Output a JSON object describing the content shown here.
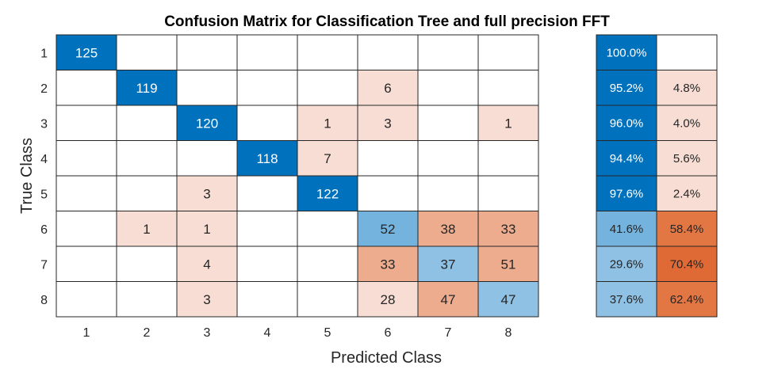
{
  "chart_data": {
    "type": "heatmap",
    "title": "Confusion  Matrix for Classification Tree and full precision FFT",
    "xlabel": "Predicted Class",
    "ylabel": "True Class",
    "classes": [
      "1",
      "2",
      "3",
      "4",
      "5",
      "6",
      "7",
      "8"
    ],
    "matrix": [
      [
        125,
        0,
        0,
        0,
        0,
        0,
        0,
        0
      ],
      [
        0,
        119,
        0,
        0,
        0,
        6,
        0,
        0
      ],
      [
        0,
        0,
        120,
        0,
        1,
        3,
        0,
        1
      ],
      [
        0,
        0,
        0,
        118,
        7,
        0,
        0,
        0
      ],
      [
        0,
        0,
        3,
        0,
        122,
        0,
        0,
        0
      ],
      [
        0,
        1,
        1,
        0,
        0,
        52,
        38,
        33
      ],
      [
        0,
        0,
        4,
        0,
        0,
        33,
        37,
        51
      ],
      [
        0,
        0,
        3,
        0,
        0,
        28,
        47,
        47
      ]
    ],
    "row_summary": [
      {
        "correct": "100.0%",
        "incorrect": ""
      },
      {
        "correct": "95.2%",
        "incorrect": "4.8%"
      },
      {
        "correct": "96.0%",
        "incorrect": "4.0%"
      },
      {
        "correct": "94.4%",
        "incorrect": "5.6%"
      },
      {
        "correct": "97.6%",
        "incorrect": "2.4%"
      },
      {
        "correct": "41.6%",
        "incorrect": "58.4%"
      },
      {
        "correct": "29.6%",
        "incorrect": "70.4%"
      },
      {
        "correct": "37.6%",
        "incorrect": "62.4%"
      }
    ],
    "colors": {
      "diag_strong": "#0072BD",
      "diag_medium": "#73B3DE",
      "diag_light": "#8EC1E4",
      "off_light": "#F7DDD3",
      "off_medium": "#EEAC8E",
      "off_strong": "#E27744",
      "off_darkest": "#DF6A36",
      "grid": "#262626"
    }
  }
}
